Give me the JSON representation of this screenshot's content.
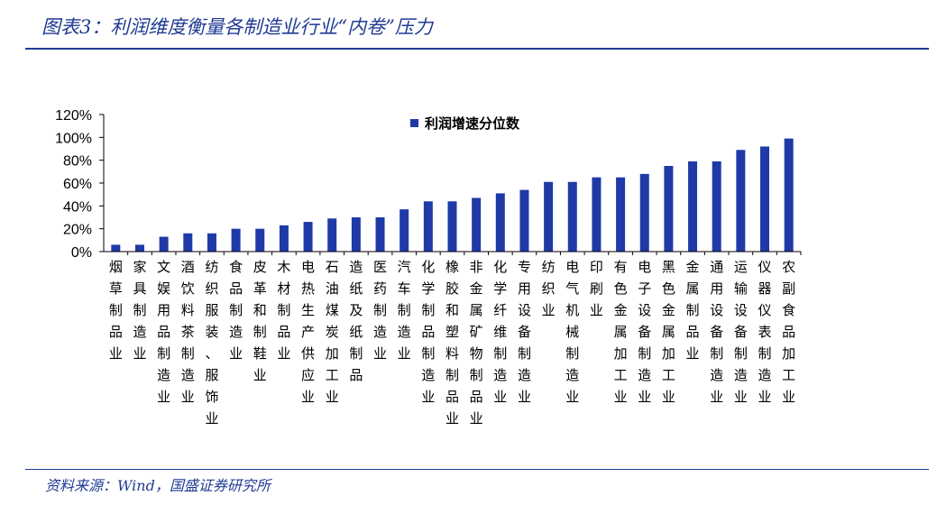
{
  "header": {
    "title": "图表3：利润维度衡量各制造业行业“内卷”压力"
  },
  "footer": {
    "source": "资料来源：Wind，国盛证券研究所"
  },
  "colors": {
    "bar": "#1f3aa6",
    "accent": "#1f3a93"
  },
  "chart_data": {
    "type": "bar",
    "title": "",
    "xlabel": "",
    "ylabel": "",
    "ylim": [
      0,
      120
    ],
    "yticks": [
      "0%",
      "20%",
      "40%",
      "60%",
      "80%",
      "100%",
      "120%"
    ],
    "legend": {
      "position": "top",
      "entries": [
        "利润增速分位数"
      ]
    },
    "grid": false,
    "categories": [
      "烟草制品业",
      "家具制造业",
      "文娱用品制造业",
      "酒饮料茶制造业",
      "纺织服装、服饰业",
      "食品制造业",
      "皮革和制鞋业",
      "木材制品业",
      "电热生产供应业",
      "石油煤炭加工业",
      "造纸及纸制品",
      "医药制造业",
      "汽车制造业",
      "化学制品制造业",
      "橡胶和塑料制品业",
      "非金属矿物制品业",
      "化学纤维制造业",
      "专用设备制造业",
      "纺织业",
      "电气机械制造业",
      "印刷业",
      "有色金属加工业",
      "电子设备制造业",
      "黑色金属加工业",
      "金属制品业",
      "通用设备制造业",
      "运输设备制造业",
      "仪器仪表制造业",
      "农副食品加工业"
    ],
    "series": [
      {
        "name": "利润增速分位数",
        "values": [
          6,
          6,
          13,
          16,
          16,
          20,
          20,
          23,
          26,
          29,
          30,
          30,
          37,
          44,
          44,
          47,
          51,
          54,
          61,
          61,
          65,
          65,
          68,
          75,
          79,
          79,
          89,
          92,
          99
        ]
      }
    ]
  }
}
